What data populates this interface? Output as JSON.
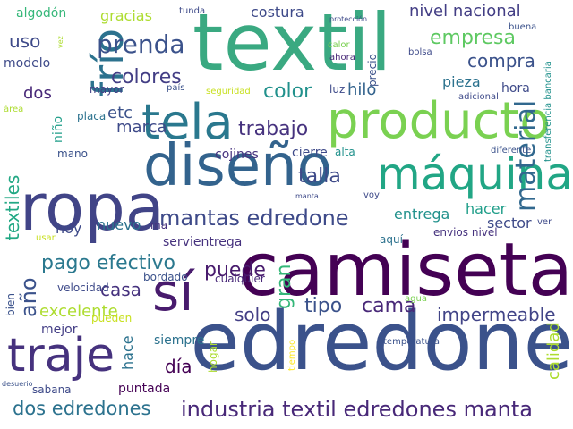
{
  "palette": {
    "dark_purple": "#440154",
    "purple": "#46327e",
    "indigo": "#3b528b",
    "blue": "#365c8d",
    "teal_blue": "#2c728e",
    "teal": "#21918c",
    "green_teal": "#28ae80",
    "green": "#5ec962",
    "light_green": "#addc30",
    "yellow_green": "#c8e020",
    "yellow": "#fde725"
  },
  "words": [
    {
      "text": "textil",
      "color": "#3aa981"
    },
    {
      "text": "camiseta",
      "color": "#440154"
    },
    {
      "text": "edredone",
      "color": "#3b528b"
    },
    {
      "text": "producto",
      "color": "#7ad151"
    },
    {
      "text": "ropa",
      "color": "#414487"
    },
    {
      "text": "diseño",
      "color": "#33638d"
    },
    {
      "text": "sí",
      "color": "#481b6d"
    },
    {
      "text": "máquina",
      "color": "#21a685"
    },
    {
      "text": "tela",
      "color": "#2a788e"
    },
    {
      "text": "traje",
      "color": "#46327e"
    },
    {
      "text": "frío",
      "color": "#2c728e"
    },
    {
      "text": "prenda",
      "color": "#3b528b"
    },
    {
      "text": "material",
      "color": "#31688e"
    },
    {
      "text": "industria textil edredones manta",
      "color": "#482878"
    },
    {
      "text": "mantas edredone",
      "color": "#3e4a89"
    },
    {
      "text": "dos edredones",
      "color": "#2c728e"
    },
    {
      "text": "colores",
      "color": "#433e85"
    },
    {
      "text": "empresa",
      "color": "#5ec962"
    },
    {
      "text": "compra",
      "color": "#3b528b"
    },
    {
      "text": "trabajo",
      "color": "#46327e"
    },
    {
      "text": "talla",
      "color": "#3e4a89"
    },
    {
      "text": "color",
      "color": "#21918c"
    },
    {
      "text": "pago efectivo",
      "color": "#2a788e"
    },
    {
      "text": "puede",
      "color": "#481b6d"
    },
    {
      "text": "año",
      "color": "#3b528b"
    },
    {
      "text": "gran",
      "color": "#35b779"
    },
    {
      "text": "impermeable",
      "color": "#414487"
    },
    {
      "text": "tipo",
      "color": "#3b528b"
    },
    {
      "text": "cama",
      "color": "#482878"
    },
    {
      "text": "solo",
      "color": "#433e85"
    },
    {
      "text": "casa",
      "color": "#46327e"
    },
    {
      "text": "textiles",
      "color": "#22a884"
    },
    {
      "text": "excelente",
      "color": "#addc30"
    },
    {
      "text": "día",
      "color": "#440154"
    },
    {
      "text": "hace",
      "color": "#2c728e"
    },
    {
      "text": "nivel nacional",
      "color": "#433e85"
    },
    {
      "text": "costura",
      "color": "#3e4a89"
    },
    {
      "text": "uso",
      "color": "#3e4a89"
    },
    {
      "text": "dos",
      "color": "#482878"
    },
    {
      "text": "etc",
      "color": "#3b528b"
    },
    {
      "text": "marca",
      "color": "#3e4a89"
    },
    {
      "text": "hilo",
      "color": "#33638d"
    },
    {
      "text": "pieza",
      "color": "#2c728e"
    },
    {
      "text": "hacer",
      "color": "#1f9e89"
    },
    {
      "text": "entrega",
      "color": "#21918c"
    },
    {
      "text": "calidad",
      "color": "#addc30"
    },
    {
      "text": "modelo",
      "color": "#3e4a89"
    },
    {
      "text": "algodón",
      "color": "#35b779"
    },
    {
      "text": "gracias",
      "color": "#addc30"
    },
    {
      "text": "nuevo",
      "color": "#2c728e"
    },
    {
      "text": "hoy",
      "color": "#3e4a89"
    },
    {
      "text": "cojines",
      "color": "#46327e"
    },
    {
      "text": "cierre",
      "color": "#3e4a89"
    },
    {
      "text": "mayor",
      "color": "#433e85"
    },
    {
      "text": "niño",
      "color": "#1f9e89"
    },
    {
      "text": "mano",
      "color": "#3b528b"
    },
    {
      "text": "servientrega",
      "color": "#46327e"
    },
    {
      "text": "velocidad",
      "color": "#3e4a89"
    },
    {
      "text": "bordado",
      "color": "#3b528b"
    },
    {
      "text": "cualquier",
      "color": "#482878"
    },
    {
      "text": "siempre",
      "color": "#2c728e"
    },
    {
      "text": "puntada",
      "color": "#440154"
    },
    {
      "text": "mejor",
      "color": "#433e85"
    },
    {
      "text": "pueden",
      "color": "#c8e020"
    },
    {
      "text": "sabana",
      "color": "#3e4a89"
    },
    {
      "text": "bien",
      "color": "#3b528b"
    },
    {
      "text": "usar",
      "color": "#c8e020"
    },
    {
      "text": "hora",
      "color": "#3e4a89"
    },
    {
      "text": "sector",
      "color": "#3e4a89"
    },
    {
      "text": "aquí",
      "color": "#2c728e"
    },
    {
      "text": "envios nivel",
      "color": "#46327e"
    },
    {
      "text": "agua",
      "color": "#7ad151"
    },
    {
      "text": "temperatura",
      "color": "#3b528b"
    },
    {
      "text": "hogar",
      "color": "#addc30"
    },
    {
      "text": "seguridad",
      "color": "#c8e020"
    },
    {
      "text": "país",
      "color": "#3b528b"
    },
    {
      "text": "placa",
      "color": "#2c728e"
    },
    {
      "text": "luz",
      "color": "#3e4a89"
    },
    {
      "text": "alta",
      "color": "#21918c"
    },
    {
      "text": "adicional",
      "color": "#3e4a89"
    },
    {
      "text": "diferente",
      "color": "#3b528b"
    },
    {
      "text": "bolsa",
      "color": "#3e4a89"
    },
    {
      "text": "ahora",
      "color": "#482878"
    },
    {
      "text": "calor",
      "color": "#7ad151"
    },
    {
      "text": "precio",
      "color": "#3b528b"
    },
    {
      "text": "buena",
      "color": "#3b528b"
    },
    {
      "text": "transferencia bancaria",
      "color": "#21918c"
    },
    {
      "text": "protección",
      "color": "#3e4a89"
    },
    {
      "text": "tunda",
      "color": "#3e4a89"
    },
    {
      "text": "área",
      "color": "#addc30"
    },
    {
      "text": "vez",
      "color": "#addc30"
    },
    {
      "text": "voy",
      "color": "#3e4a89"
    },
    {
      "text": "ver",
      "color": "#3e4a89"
    },
    {
      "text": "manta",
      "color": "#3e4a89"
    },
    {
      "text": "tiempo",
      "color": "#fde725"
    },
    {
      "text": "ma",
      "color": "#46327e"
    },
    {
      "text": "desuerio",
      "color": "#3b528b"
    }
  ]
}
